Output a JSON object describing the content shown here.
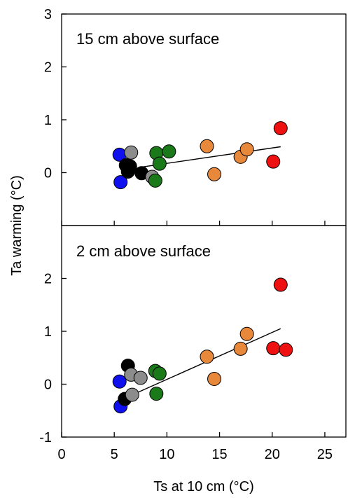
{
  "chart_data": {
    "type": "scatter",
    "x_label": "Ts at 10 cm (°C)",
    "y_label": "Ta warming (°C)",
    "x_range": [
      0,
      27
    ],
    "x_ticks": [
      0,
      5,
      10,
      15,
      20,
      25
    ],
    "grid": false,
    "legend": "none",
    "colors": {
      "blue": "#1010ee",
      "black": "#000000",
      "gray": "#8c8c8c",
      "green": "#1a7a1a",
      "orange": "#e8883a",
      "red": "#ee1111",
      "fit_line": "#000000"
    },
    "panels": [
      {
        "title": "15 cm above surface",
        "y_range": [
          -1,
          3
        ],
        "y_ticks": [
          0,
          1,
          2,
          3
        ],
        "fit_line": {
          "x": [
            7.4,
            20.8
          ],
          "y": [
            0.1,
            0.49
          ]
        },
        "points": [
          {
            "x": 5.5,
            "y": 0.34,
            "color": "blue"
          },
          {
            "x": 5.6,
            "y": -0.18,
            "color": "blue"
          },
          {
            "x": 6.1,
            "y": 0.14,
            "color": "black"
          },
          {
            "x": 6.3,
            "y": 0.02,
            "color": "black"
          },
          {
            "x": 6.5,
            "y": 0.12,
            "color": "black"
          },
          {
            "x": 6.6,
            "y": 0.38,
            "color": "gray"
          },
          {
            "x": 7.6,
            "y": -0.01,
            "color": "black"
          },
          {
            "x": 8.6,
            "y": -0.08,
            "color": "gray"
          },
          {
            "x": 8.9,
            "y": -0.15,
            "color": "green"
          },
          {
            "x": 9.0,
            "y": 0.37,
            "color": "green"
          },
          {
            "x": 9.3,
            "y": 0.17,
            "color": "green"
          },
          {
            "x": 10.2,
            "y": 0.4,
            "color": "green"
          },
          {
            "x": 13.8,
            "y": 0.5,
            "color": "orange"
          },
          {
            "x": 14.5,
            "y": -0.03,
            "color": "orange"
          },
          {
            "x": 17.0,
            "y": 0.3,
            "color": "orange"
          },
          {
            "x": 17.6,
            "y": 0.44,
            "color": "orange"
          },
          {
            "x": 20.1,
            "y": 0.21,
            "color": "red"
          },
          {
            "x": 20.8,
            "y": 0.84,
            "color": "red"
          }
        ]
      },
      {
        "title": "2 cm above surface",
        "y_range": [
          -1,
          3
        ],
        "y_ticks": [
          -1,
          0,
          1,
          2
        ],
        "fit_line": {
          "x": [
            5.6,
            20.8
          ],
          "y": [
            -0.3,
            1.05
          ]
        },
        "points": [
          {
            "x": 5.5,
            "y": 0.05,
            "color": "blue"
          },
          {
            "x": 5.6,
            "y": -0.42,
            "color": "blue"
          },
          {
            "x": 6.0,
            "y": -0.28,
            "color": "black"
          },
          {
            "x": 6.3,
            "y": 0.35,
            "color": "black"
          },
          {
            "x": 6.6,
            "y": 0.18,
            "color": "gray"
          },
          {
            "x": 6.7,
            "y": -0.2,
            "color": "gray"
          },
          {
            "x": 7.5,
            "y": 0.12,
            "color": "gray"
          },
          {
            "x": 8.9,
            "y": 0.25,
            "color": "green"
          },
          {
            "x": 9.0,
            "y": -0.18,
            "color": "green"
          },
          {
            "x": 9.3,
            "y": 0.2,
            "color": "green"
          },
          {
            "x": 13.8,
            "y": 0.52,
            "color": "orange"
          },
          {
            "x": 14.5,
            "y": 0.1,
            "color": "orange"
          },
          {
            "x": 17.0,
            "y": 0.67,
            "color": "orange"
          },
          {
            "x": 17.6,
            "y": 0.95,
            "color": "orange"
          },
          {
            "x": 20.1,
            "y": 0.68,
            "color": "red"
          },
          {
            "x": 20.8,
            "y": 1.88,
            "color": "red"
          },
          {
            "x": 21.3,
            "y": 0.65,
            "color": "red"
          }
        ]
      }
    ]
  }
}
